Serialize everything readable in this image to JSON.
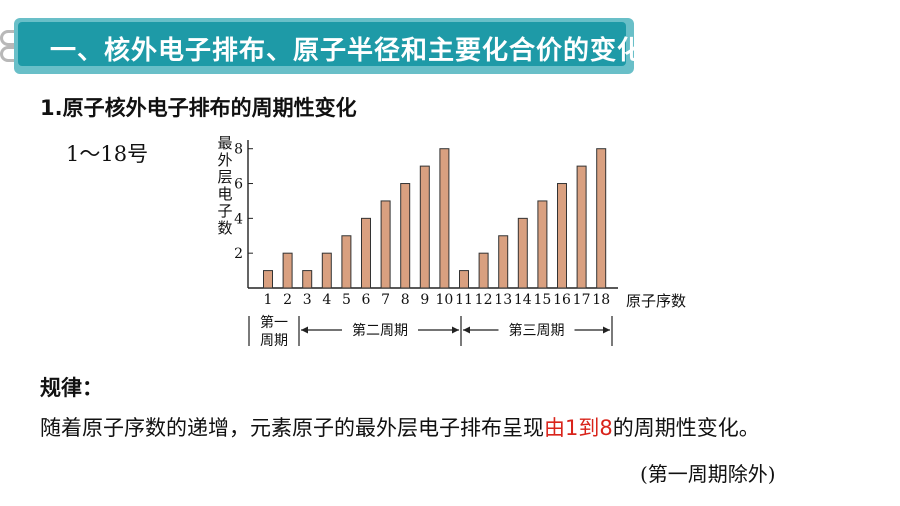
{
  "header": {
    "title": "一、核外电子排布、原子半径和主要化合价的变化",
    "colors": {
      "banner": "#1e9aa7",
      "banner_border": "#69bfc8"
    }
  },
  "section": {
    "subtitle": "1.原子核外电子排布的周期性变化",
    "range": "1～18号"
  },
  "chart_data": {
    "type": "bar",
    "ylabel": "最外层电子数",
    "xlabel": "原子序数",
    "categories": [
      "1",
      "2",
      "3",
      "4",
      "5",
      "6",
      "7",
      "8",
      "9",
      "10",
      "11",
      "12",
      "13",
      "14",
      "15",
      "16",
      "17",
      "18"
    ],
    "values": [
      1,
      2,
      1,
      2,
      3,
      4,
      5,
      6,
      7,
      8,
      1,
      2,
      3,
      4,
      5,
      6,
      7,
      8
    ],
    "ylim": [
      0,
      8.5
    ],
    "yticks": [
      "2",
      "4",
      "6",
      "8"
    ],
    "bar_color": "#d9a080",
    "bar_stroke": "#333333",
    "periods": [
      {
        "label": "第一周期",
        "from": 1,
        "to": 2
      },
      {
        "label": "第二周期",
        "from": 3,
        "to": 10
      },
      {
        "label": "第三周期",
        "from": 11,
        "to": 18
      }
    ]
  },
  "rule": {
    "label": "规律：",
    "text_before": "随着原子序数的递增，元素原子的最外层电子排布呈现",
    "highlight": "由1到8",
    "text_after": "的周期性变化。",
    "note": "(第一周期除外)",
    "highlight_color": "#d9241b"
  }
}
